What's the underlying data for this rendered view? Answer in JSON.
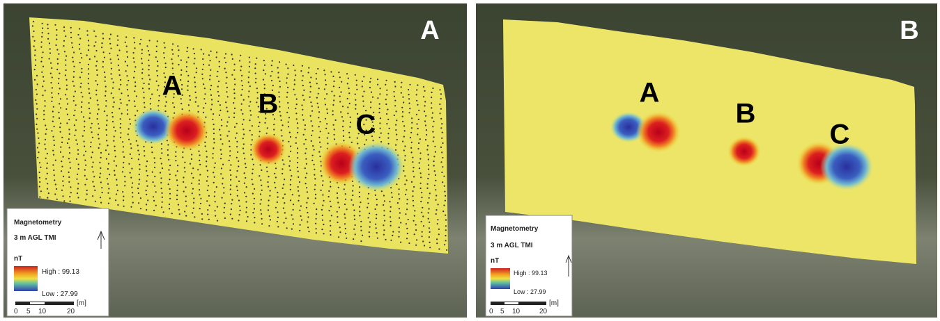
{
  "panels": [
    {
      "label": "A",
      "anomalies": [
        "A",
        "B",
        "C"
      ],
      "legend": {
        "title": "Magnetometry",
        "subtitle": "3 m AGL TMI",
        "unit": "nT",
        "high": "High : 99.13",
        "low": "Low : 27.99",
        "scale_ticks": [
          "0",
          "5",
          "10",
          "20"
        ],
        "scale_unit": "[m]"
      }
    },
    {
      "label": "B",
      "anomalies": [
        "A",
        "B",
        "C"
      ],
      "legend": {
        "title": "Magnetometry",
        "subtitle": "3 m AGL TMI",
        "unit": "nT",
        "high": "High : 99.13",
        "low": "Low : 27.99",
        "scale_ticks": [
          "0",
          "5",
          "10",
          "20"
        ],
        "scale_unit": "[m]"
      }
    }
  ]
}
